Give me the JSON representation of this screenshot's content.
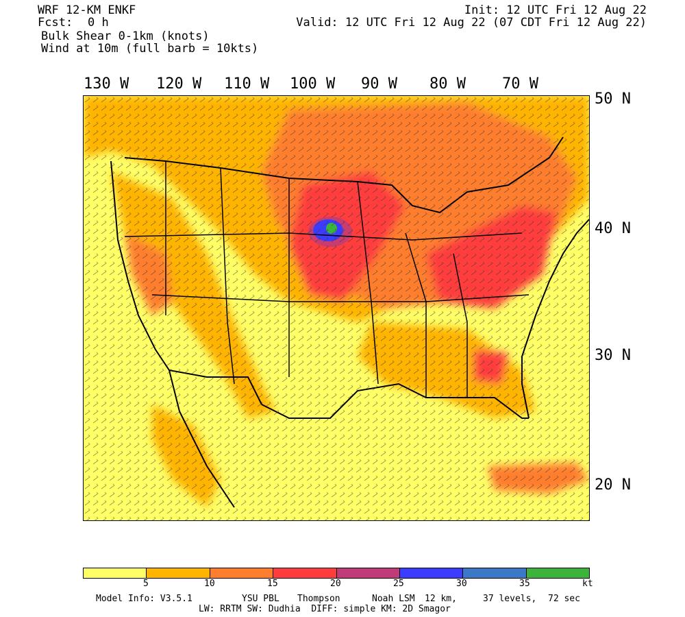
{
  "header": {
    "model": "WRF 12-KM ENKF",
    "forecast_label": "Fcst:",
    "forecast_value": "0 h",
    "field1": "Bulk Shear 0-1km (knots)",
    "field2": "Wind at 10m (full barb = 10kts)",
    "init": "Init: 12 UTC Fri 12 Aug 22",
    "valid": "Valid: 12 UTC Fri 12 Aug 22 (07 CDT Fri 12 Aug 22)"
  },
  "longitude_labels": [
    "130 W",
    "120 W",
    "110 W",
    "100 W",
    "90 W",
    "80 W",
    "70 W"
  ],
  "latitude_labels": [
    "50 N",
    "40 N",
    "30 N",
    "20 N"
  ],
  "legend": {
    "colors": [
      "#ffff66",
      "#ffb400",
      "#ff7e2e",
      "#ff3c3c",
      "#c03c78",
      "#3c3cff",
      "#3c78c8",
      "#3cb43c"
    ],
    "ticks": [
      "5",
      "10",
      "15",
      "20",
      "25",
      "30",
      "35"
    ],
    "unit": "kt"
  },
  "footer": {
    "line1a": "Model Info: V3.5.1",
    "line1b": "YSU PBL",
    "line1c": "Thompson",
    "line1d": "Noah LSM",
    "line1e": "12 km,",
    "line1f": "37 levels,",
    "line1g": "72 sec",
    "line2": "LW: RRTM SW: Dudhia  DIFF: simple KM: 2D Smagor"
  },
  "colors": {
    "background": "#ffffff",
    "lowest_band": "#ffff66"
  }
}
